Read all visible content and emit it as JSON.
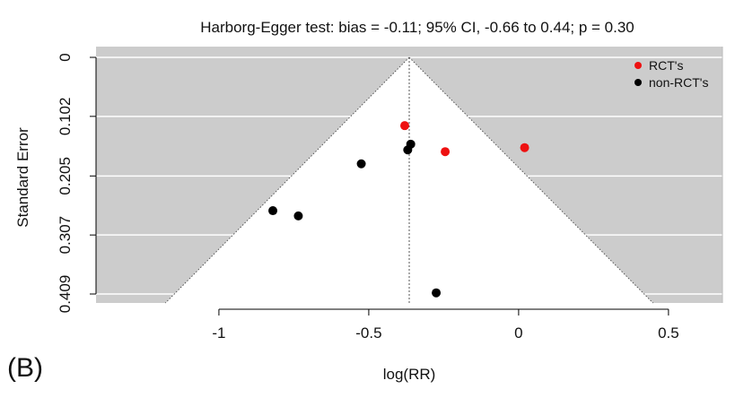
{
  "panel_label": "(B)",
  "chart_data": {
    "type": "scatter",
    "subtype": "funnel-plot",
    "title": "Harborg-Egger test: bias = -0.11; 95% CI, -0.66 to 0.44; p = 0.30",
    "xlabel": "log(RR)",
    "ylabel": "Standard Error",
    "xlim": [
      -1.41,
      0.68
    ],
    "ylim": [
      0,
      0.415
    ],
    "y_reversed": true,
    "x_ticks": [
      -1,
      -0.5,
      0,
      0.5
    ],
    "x_tick_labels": [
      "-1",
      "-0.5",
      "0",
      "0.5"
    ],
    "y_ticks": [
      0,
      0.102,
      0.205,
      0.307,
      0.409
    ],
    "y_tick_labels": [
      "0",
      "0.102",
      "0.205",
      "0.307",
      "0.409"
    ],
    "pooled_estimate": -0.365,
    "grid": true,
    "background_color": "#cccccc",
    "funnel_color": "#ffffff",
    "legend": {
      "position": "top-right",
      "entries": [
        {
          "label": "RCT's",
          "color": "#ee1111"
        },
        {
          "label": "non-RCT's",
          "color": "#000000"
        }
      ]
    },
    "series": [
      {
        "name": "RCT's",
        "color": "#ee1111",
        "points": [
          {
            "x": -0.38,
            "y": 0.118
          },
          {
            "x": -0.245,
            "y": 0.163
          },
          {
            "x": 0.02,
            "y": 0.156
          }
        ]
      },
      {
        "name": "non-RCT's",
        "color": "#000000",
        "points": [
          {
            "x": -0.36,
            "y": 0.15
          },
          {
            "x": -0.37,
            "y": 0.16
          },
          {
            "x": -0.525,
            "y": 0.184
          },
          {
            "x": -0.82,
            "y": 0.265
          },
          {
            "x": -0.735,
            "y": 0.274
          },
          {
            "x": -0.275,
            "y": 0.407
          }
        ]
      }
    ]
  }
}
